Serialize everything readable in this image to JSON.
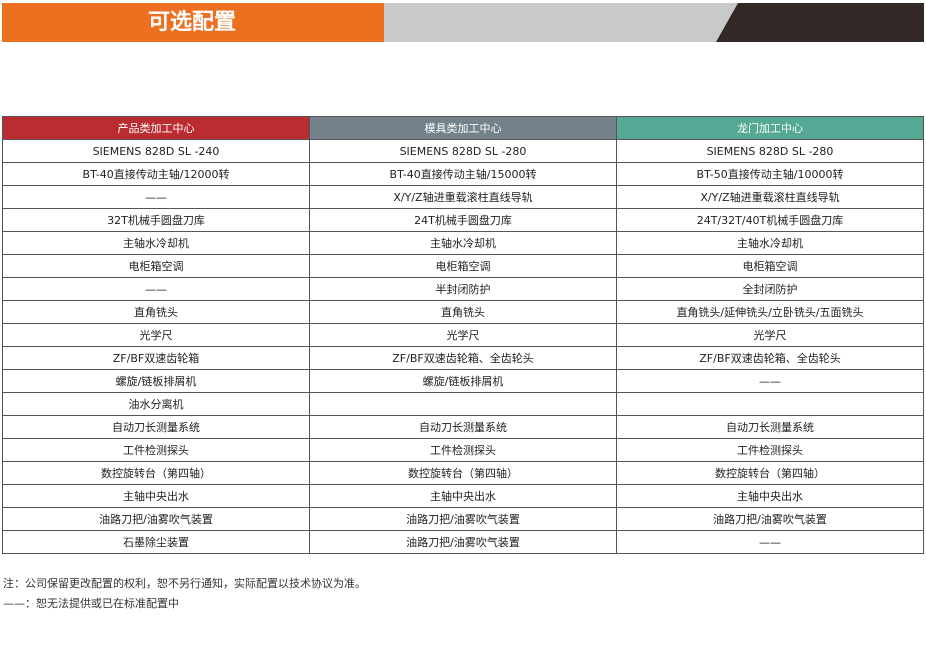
{
  "banner": {
    "title": "可选配置",
    "colors": {
      "orange": "#ec7020",
      "gray": "#c8cac9",
      "dark": "#322927"
    }
  },
  "table": {
    "headers": [
      "产品类加工中心",
      "模具类加工中心",
      "龙门加工中心"
    ],
    "header_colors": [
      "#bb2c32",
      "#73818a",
      "#54a894"
    ],
    "rows": [
      [
        "SIEMENS 828D SL -240",
        "SIEMENS 828D SL -280",
        "SIEMENS 828D SL -280"
      ],
      [
        "BT-40直接传动主轴/12000转",
        "BT-40直接传动主轴/15000转",
        "BT-50直接传动主轴/10000转"
      ],
      [
        "——",
        "X/Y/Z轴进重载滚柱直线导轨",
        "X/Y/Z轴进重载滚柱直线导轨"
      ],
      [
        "32T机械手圆盘刀库",
        "24T机械手圆盘刀库",
        "24T/32T/40T机械手圆盘刀库"
      ],
      [
        "主轴水冷却机",
        "主轴水冷却机",
        "主轴水冷却机"
      ],
      [
        "电柜箱空调",
        "电柜箱空调",
        "电柜箱空调"
      ],
      [
        "——",
        "半封闭防护",
        "全封闭防护"
      ],
      [
        "直角铣头",
        "直角铣头",
        "直角铣头/延伸铣头/立卧铣头/五面铣头"
      ],
      [
        "光学尺",
        "光学尺",
        "光学尺"
      ],
      [
        "ZF/BF双速齿轮箱",
        "ZF/BF双速齿轮箱、全齿轮头",
        "ZF/BF双速齿轮箱、全齿轮头"
      ],
      [
        "螺旋/链板排屑机",
        "螺旋/链板排屑机",
        "——"
      ],
      [
        "油水分离机",
        "",
        ""
      ],
      [
        "自动刀长测量系统",
        "自动刀长测量系统",
        "自动刀长测量系统"
      ],
      [
        "工件检测探头",
        "工件检测探头",
        "工件检测探头"
      ],
      [
        "数控旋转台（第四轴）",
        "数控旋转台（第四轴）",
        "数控旋转台（第四轴）"
      ],
      [
        "主轴中央出水",
        "主轴中央出水",
        "主轴中央出水"
      ],
      [
        "油路刀把/油雾吹气装置",
        "油路刀把/油雾吹气装置",
        "油路刀把/油雾吹气装置"
      ],
      [
        "石墨除尘装置",
        "油路刀把/油雾吹气装置",
        "——"
      ]
    ]
  },
  "notes": [
    "注：公司保留更改配置的权利，恕不另行通知，实际配置以技术协议为准。",
    "——：恕无法提供或已在标准配置中"
  ]
}
